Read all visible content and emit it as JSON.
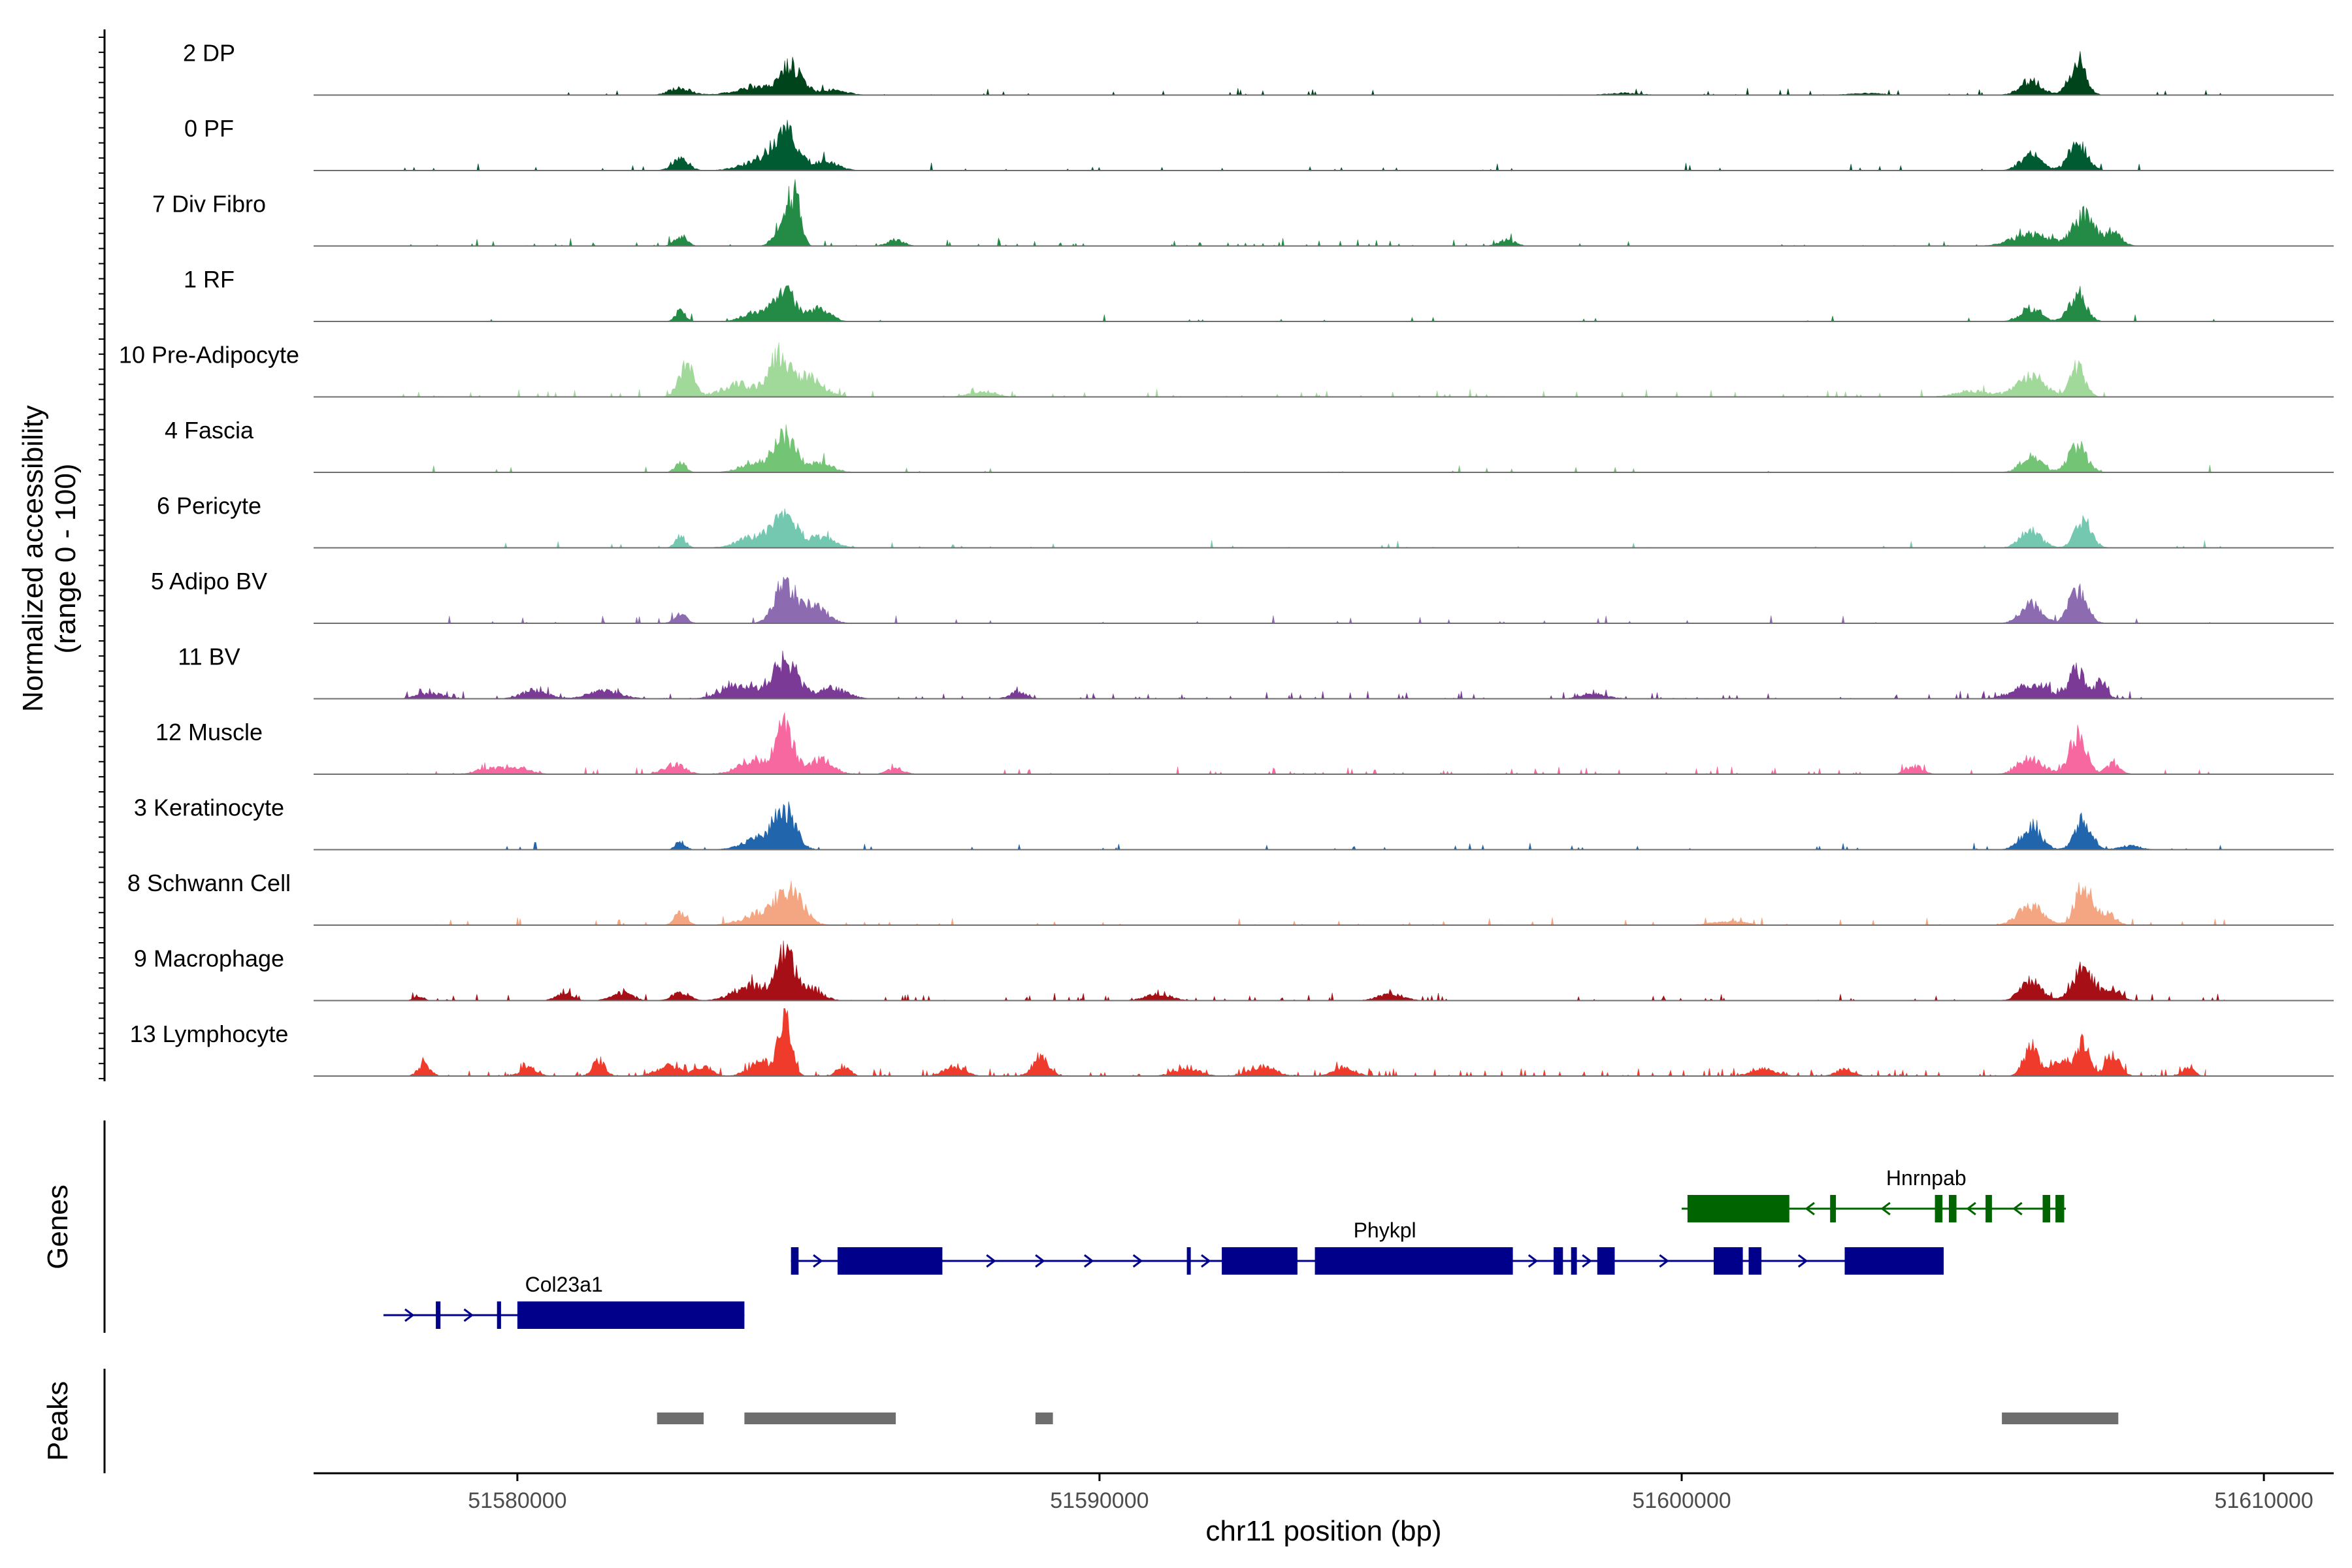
{
  "chart_data": {
    "type": "area",
    "title": "",
    "chromosome": "chr11",
    "xlabel": "chr11 position (bp)",
    "ylabel_line1": "Normalized accessibility",
    "ylabel_line2": "(range 0 - 100)",
    "ylim": [
      0,
      100
    ],
    "xlim": [
      51576500,
      51611200
    ],
    "x_ticks": [
      51580000,
      51590000,
      51600000,
      51610000
    ],
    "x_tick_labels": [
      "51580000",
      "51590000",
      "51600000",
      "51610000"
    ],
    "panel_titles": {
      "genes": "Genes",
      "peaks": "Peaks"
    },
    "tracks": [
      {
        "name": "2 DP",
        "color": "#00441b",
        "noise": 0.04,
        "noise_span": [
          51578000,
          51609500
        ],
        "peaks": [
          [
            51582800,
            260,
            14
          ],
          [
            51584100,
            500,
            15
          ],
          [
            51584700,
            260,
            58
          ],
          [
            51585400,
            350,
            10
          ],
          [
            51599000,
            400,
            4
          ],
          [
            51603200,
            400,
            4
          ],
          [
            51606000,
            260,
            30
          ],
          [
            51606800,
            200,
            64
          ]
        ]
      },
      {
        "name": "0 PF",
        "color": "#005a32",
        "noise": 0.035,
        "noise_span": [
          51578000,
          51609500
        ],
        "peaks": [
          [
            51582800,
            200,
            22
          ],
          [
            51584200,
            450,
            20
          ],
          [
            51584600,
            300,
            75
          ],
          [
            51585300,
            300,
            18
          ],
          [
            51606000,
            250,
            32
          ],
          [
            51606800,
            220,
            56
          ]
        ]
      },
      {
        "name": "7 Div Fibro",
        "color": "#238b45",
        "noise": 0.07,
        "noise_span": [
          51578000,
          51608000
        ],
        "peaks": [
          [
            51582800,
            150,
            20
          ],
          [
            51584600,
            200,
            66
          ],
          [
            51584800,
            120,
            80
          ],
          [
            51586500,
            200,
            12
          ],
          [
            51597000,
            200,
            12
          ],
          [
            51606000,
            450,
            24
          ],
          [
            51606900,
            250,
            62
          ],
          [
            51607400,
            200,
            30
          ]
        ]
      },
      {
        "name": "1 RF",
        "color": "#238b45",
        "noise": 0.03,
        "noise_span": [
          51578000,
          51609500
        ],
        "peaks": [
          [
            51582800,
            120,
            22
          ],
          [
            51584100,
            300,
            20
          ],
          [
            51584600,
            250,
            64
          ],
          [
            51585200,
            250,
            26
          ],
          [
            51606000,
            250,
            28
          ],
          [
            51606800,
            200,
            60
          ]
        ]
      },
      {
        "name": "10 Pre-Adipocyte",
        "color": "#a1d99b",
        "noise": 0.08,
        "noise_span": [
          51578000,
          51608500
        ],
        "peaks": [
          [
            51582900,
            180,
            68
          ],
          [
            51583800,
            400,
            26
          ],
          [
            51584500,
            250,
            80
          ],
          [
            51585000,
            350,
            40
          ],
          [
            51588000,
            300,
            12
          ],
          [
            51605000,
            400,
            12
          ],
          [
            51606000,
            350,
            40
          ],
          [
            51606800,
            180,
            60
          ]
        ]
      },
      {
        "name": "4 Fascia",
        "color": "#74c476",
        "noise": 0.035,
        "noise_span": [
          51578000,
          51609500
        ],
        "peaks": [
          [
            51582800,
            120,
            22
          ],
          [
            51584100,
            350,
            22
          ],
          [
            51584600,
            250,
            72
          ],
          [
            51585200,
            300,
            20
          ],
          [
            51606000,
            250,
            32
          ],
          [
            51606800,
            220,
            54
          ]
        ]
      },
      {
        "name": "6 Pericyte",
        "color": "#74c8b0",
        "noise": 0.035,
        "noise_span": [
          51578000,
          51609500
        ],
        "peaks": [
          [
            51582800,
            120,
            26
          ],
          [
            51584100,
            400,
            24
          ],
          [
            51584600,
            260,
            62
          ],
          [
            51585200,
            350,
            22
          ],
          [
            51606000,
            250,
            36
          ],
          [
            51606900,
            200,
            54
          ]
        ]
      },
      {
        "name": "5 Adipo BV",
        "color": "#8c6bb1",
        "noise": 0.04,
        "noise_span": [
          51578000,
          51609500
        ],
        "peaks": [
          [
            51582800,
            150,
            18
          ],
          [
            51584600,
            250,
            82
          ],
          [
            51585100,
            300,
            35
          ],
          [
            51606000,
            250,
            40
          ],
          [
            51606800,
            220,
            64
          ]
        ]
      },
      {
        "name": "11 BV",
        "color": "#7a3a96",
        "noise": 0.12,
        "noise_span": [
          51578000,
          51608000
        ],
        "peaks": [
          [
            51578500,
            300,
            12
          ],
          [
            51580300,
            300,
            18
          ],
          [
            51581500,
            400,
            16
          ],
          [
            51583800,
            400,
            28
          ],
          [
            51584600,
            300,
            82
          ],
          [
            51585400,
            350,
            22
          ],
          [
            51588600,
            200,
            14
          ],
          [
            51598500,
            300,
            10
          ],
          [
            51606000,
            400,
            30
          ],
          [
            51606800,
            200,
            58
          ],
          [
            51607200,
            150,
            30
          ]
        ]
      },
      {
        "name": "12 Muscle",
        "color": "#f768a1",
        "noise": 0.1,
        "noise_span": [
          51578000,
          51609500
        ],
        "peaks": [
          [
            51579500,
            300,
            12
          ],
          [
            51580000,
            300,
            14
          ],
          [
            51582700,
            250,
            20
          ],
          [
            51584100,
            400,
            30
          ],
          [
            51584600,
            200,
            100
          ],
          [
            51585200,
            300,
            30
          ],
          [
            51586500,
            200,
            12
          ],
          [
            51604000,
            200,
            16
          ],
          [
            51606000,
            300,
            32
          ],
          [
            51606800,
            200,
            80
          ],
          [
            51607400,
            180,
            20
          ]
        ]
      },
      {
        "name": "3 Keratinocyte",
        "color": "#2166ac",
        "noise": 0.04,
        "noise_span": [
          51578000,
          51609500
        ],
        "peaks": [
          [
            51582800,
            120,
            16
          ],
          [
            51584200,
            400,
            26
          ],
          [
            51584600,
            250,
            72
          ],
          [
            51606000,
            250,
            44
          ],
          [
            51606900,
            200,
            60
          ],
          [
            51607700,
            250,
            8
          ]
        ]
      },
      {
        "name": "8 Schwann Cell",
        "color": "#f4a582",
        "noise": 0.06,
        "noise_span": [
          51578000,
          51609500
        ],
        "peaks": [
          [
            51582800,
            150,
            24
          ],
          [
            51584300,
            500,
            28
          ],
          [
            51584700,
            300,
            60
          ],
          [
            51600800,
            400,
            8
          ],
          [
            51606000,
            300,
            40
          ],
          [
            51606900,
            200,
            80
          ],
          [
            51607300,
            200,
            26
          ]
        ]
      },
      {
        "name": "9 Macrophage",
        "color": "#a50f15",
        "noise": 0.1,
        "noise_span": [
          51578000,
          51609500
        ],
        "peaks": [
          [
            51578300,
            120,
            10
          ],
          [
            51580800,
            200,
            14
          ],
          [
            51581800,
            250,
            16
          ],
          [
            51582800,
            200,
            18
          ],
          [
            51584000,
            400,
            30
          ],
          [
            51584600,
            200,
            100
          ],
          [
            51585000,
            300,
            26
          ],
          [
            51591000,
            300,
            14
          ],
          [
            51595000,
            300,
            14
          ],
          [
            51606000,
            250,
            40
          ],
          [
            51606900,
            250,
            64
          ],
          [
            51607400,
            200,
            24
          ]
        ]
      },
      {
        "name": "13 Lymphocyte",
        "color": "#ef3b2c",
        "noise": 0.18,
        "noise_span": [
          51578000,
          51609000
        ],
        "peaks": [
          [
            51578400,
            150,
            24
          ],
          [
            51580200,
            200,
            16
          ],
          [
            51581400,
            150,
            34
          ],
          [
            51582600,
            300,
            20
          ],
          [
            51583200,
            200,
            18
          ],
          [
            51584200,
            300,
            28
          ],
          [
            51584600,
            150,
            118
          ],
          [
            51585600,
            150,
            22
          ],
          [
            51587500,
            250,
            20
          ],
          [
            51589000,
            200,
            34
          ],
          [
            51591500,
            300,
            16
          ],
          [
            51592800,
            300,
            20
          ],
          [
            51594200,
            250,
            18
          ],
          [
            51601400,
            300,
            14
          ],
          [
            51602800,
            200,
            14
          ],
          [
            51606000,
            180,
            60
          ],
          [
            51606500,
            250,
            36
          ],
          [
            51606900,
            150,
            64
          ],
          [
            51607400,
            180,
            40
          ],
          [
            51608700,
            150,
            16
          ]
        ]
      }
    ],
    "genes": [
      {
        "name": "Hnrnpab",
        "strand": "-",
        "color": "#006400",
        "row": 0,
        "span": [
          51600000,
          51606600
        ],
        "exons": [
          [
            51600100,
            51601850
          ],
          [
            51602550,
            51602650
          ],
          [
            51604350,
            51604480
          ],
          [
            51604590,
            51604720
          ],
          [
            51605220,
            51605330
          ],
          [
            51606200,
            51606330
          ],
          [
            51606420,
            51606570
          ]
        ],
        "label_pos": 51604200
      },
      {
        "name": "Phykpl",
        "strand": "+",
        "color": "#00008b",
        "row": 1,
        "span": [
          51584700,
          51604400
        ],
        "exons": [
          [
            51584700,
            51584830
          ],
          [
            51585500,
            51587300
          ],
          [
            51591500,
            51591560
          ],
          [
            51592100,
            51593400
          ],
          [
            51593700,
            51597100
          ],
          [
            51597800,
            51597960
          ],
          [
            51598100,
            51598200
          ],
          [
            51598550,
            51598850
          ],
          [
            51600550,
            51601050
          ],
          [
            51601150,
            51601370
          ],
          [
            51602800,
            51604500
          ]
        ],
        "label_pos": 51594900
      },
      {
        "name": "Col23a1",
        "strand": "+",
        "color": "#00008b",
        "row": 2,
        "span": [
          51577700,
          51583900
        ],
        "exons": [
          [
            51578600,
            51578680
          ],
          [
            51579650,
            51579720
          ],
          [
            51580000,
            51583900
          ]
        ],
        "label_pos": 51580800
      }
    ],
    "peaks": [
      [
        51582400,
        51583200
      ],
      [
        51583900,
        51586500
      ],
      [
        51588900,
        51589200
      ],
      [
        51605500,
        51607500
      ]
    ]
  }
}
